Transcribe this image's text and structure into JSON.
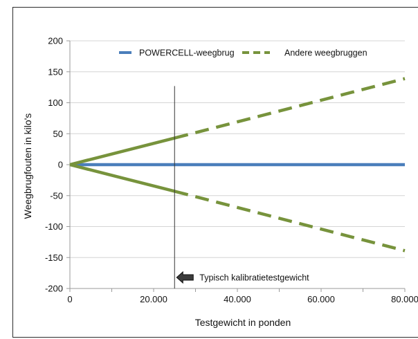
{
  "chart_data": {
    "type": "line",
    "xlabel": "Testgewicht in ponden",
    "ylabel": "Weegbrugfouten in kilo's",
    "xlim": [
      0,
      80000
    ],
    "ylim": [
      -200,
      200
    ],
    "x_ticks": [
      "0",
      "20.000",
      "40.000",
      "60.000",
      "80.000"
    ],
    "y_ticks": [
      "200",
      "150",
      "100",
      "50",
      "0",
      "-50",
      "-100",
      "-150",
      "-200"
    ],
    "grid": "horizontal",
    "legend_position": "top",
    "series": [
      {
        "name": "POWERCELL-weegbrug",
        "color": "#4a7ebb",
        "style": "solid",
        "points": [
          [
            0,
            0
          ],
          [
            80000,
            0
          ]
        ]
      },
      {
        "name": "Andere weegbruggen",
        "color": "#77933c",
        "upper": {
          "solid": [
            [
              0,
              0
            ],
            [
              25000,
              43
            ]
          ],
          "dashed": [
            [
              25000,
              43
            ],
            [
              80000,
              139
            ]
          ]
        },
        "lower": {
          "solid": [
            [
              0,
              0
            ],
            [
              25000,
              -43
            ]
          ],
          "dashed": [
            [
              25000,
              -43
            ],
            [
              80000,
              -139
            ]
          ]
        }
      }
    ],
    "reference_line": {
      "x": 25000,
      "y_top": 127,
      "label": "Typisch kalibratietestgewicht",
      "arrow_icon": "left-arrow-icon"
    }
  }
}
